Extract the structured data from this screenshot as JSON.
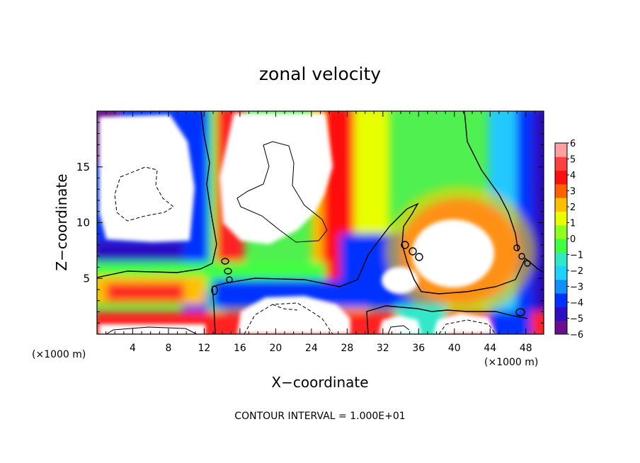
{
  "chart_data": {
    "type": "heatmap",
    "title": "zonal velocity",
    "xlabel": "X−coordinate",
    "ylabel": "Z−coordinate",
    "x_unit": "(×1000 m)",
    "y_unit": "(×1000 m)",
    "xlim": [
      0,
      50
    ],
    "ylim": [
      0,
      20
    ],
    "x_ticks": [
      4,
      8,
      12,
      16,
      20,
      24,
      28,
      32,
      36,
      40,
      44,
      48
    ],
    "y_ticks": [
      5,
      10,
      15
    ],
    "colorbar": {
      "ticks": [
        "6",
        "5",
        "4",
        "3",
        "2",
        "1",
        "0",
        "−1",
        "−2",
        "−3",
        "−4",
        "−5",
        "−6"
      ],
      "range": [
        -6,
        6
      ],
      "colors": [
        "#6a0d8f",
        "#2a10c0",
        "#0030ff",
        "#1090ff",
        "#20d0ff",
        "#30e8c8",
        "#40ff40",
        "#90ff20",
        "#e8ff00",
        "#ffc000",
        "#ff6000",
        "#ff1010",
        "#ff4040",
        "#ffa0a0"
      ]
    },
    "annotation": "CONTOUR INTERVAL = 1.000E+01"
  }
}
